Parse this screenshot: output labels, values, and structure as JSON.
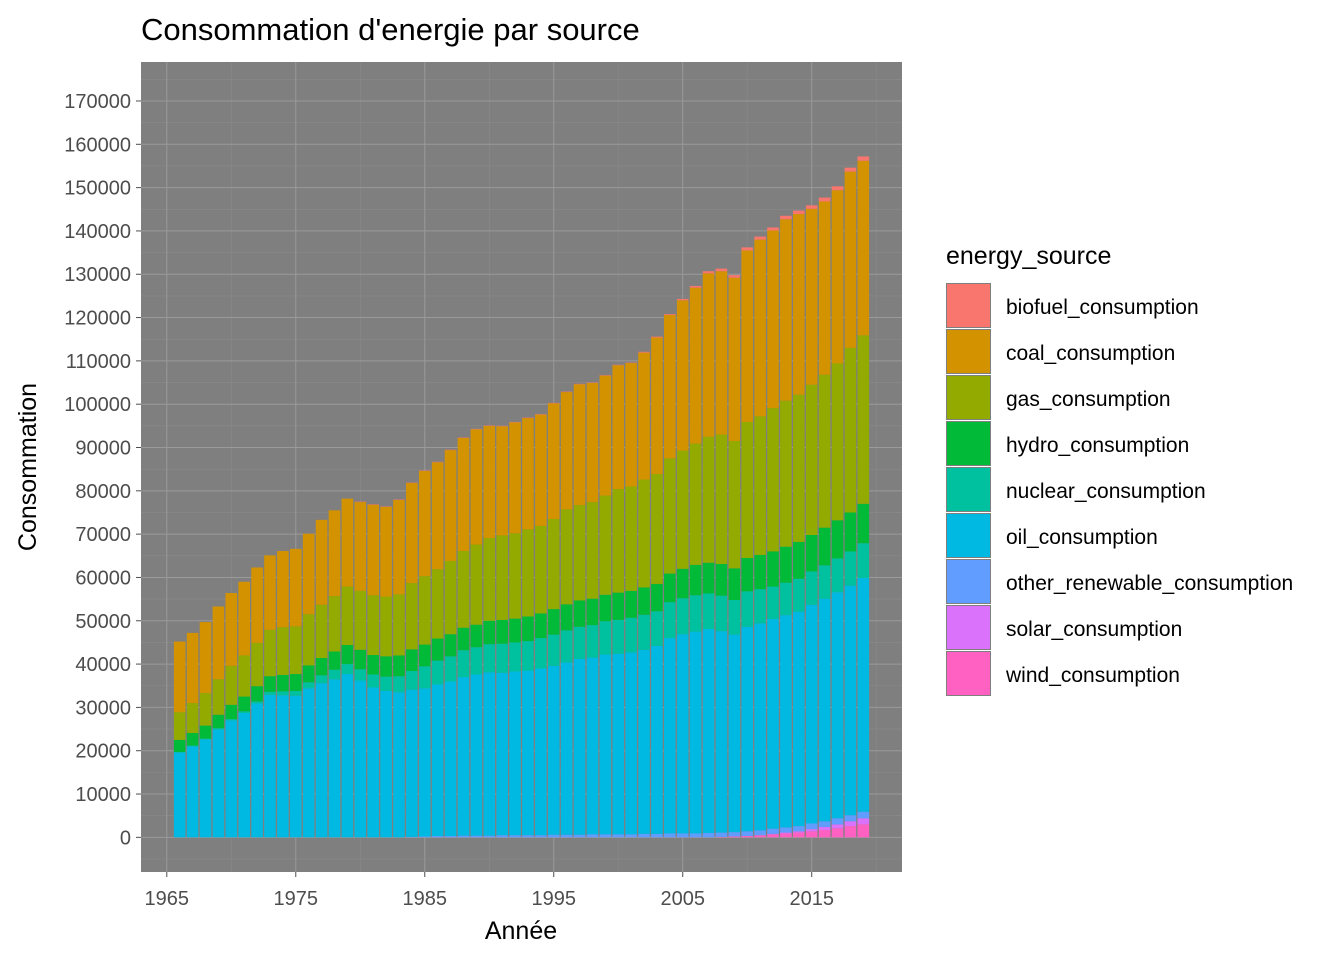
{
  "chart_data": {
    "type": "bar",
    "stacked": true,
    "title": "Consommation d'energie par source",
    "xlabel": "Année",
    "ylabel": "Consommation",
    "xlim": [
      1963,
      2022
    ],
    "ylim": [
      -8000,
      179000
    ],
    "x_ticks": [
      "1965",
      "1975",
      "1985",
      "1995",
      "2005",
      "2015"
    ],
    "y_ticks": [
      "0",
      "10000",
      "20000",
      "30000",
      "40000",
      "50000",
      "60000",
      "70000",
      "80000",
      "90000",
      "100000",
      "110000",
      "120000",
      "130000",
      "140000",
      "150000",
      "160000",
      "170000"
    ],
    "grid": true,
    "panel_background": "#7f7f7f",
    "legend": {
      "title": "energy_source",
      "position": "right"
    },
    "x": [
      1966,
      1967,
      1968,
      1969,
      1970,
      1971,
      1972,
      1973,
      1974,
      1975,
      1976,
      1977,
      1978,
      1979,
      1980,
      1981,
      1982,
      1983,
      1984,
      1985,
      1986,
      1987,
      1988,
      1989,
      1990,
      1991,
      1992,
      1993,
      1994,
      1995,
      1996,
      1997,
      1998,
      1999,
      2000,
      2001,
      2002,
      2003,
      2004,
      2005,
      2006,
      2007,
      2008,
      2009,
      2010,
      2011,
      2012,
      2013,
      2014,
      2015,
      2016,
      2017,
      2018,
      2019
    ],
    "series": [
      {
        "name": "wind_consumption",
        "color": "#FF61C3",
        "values": [
          0,
          0,
          0,
          0,
          0,
          0,
          0,
          0,
          0,
          0,
          0,
          0,
          0,
          0,
          0,
          0,
          0,
          0,
          0,
          0,
          0,
          0,
          0,
          0,
          0,
          0,
          0,
          0,
          0,
          0,
          0,
          0,
          0,
          0,
          0,
          0,
          0,
          0,
          0,
          0,
          0,
          0,
          100,
          200,
          300,
          500,
          700,
          900,
          1100,
          1400,
          1700,
          2100,
          2600,
          3000
        ]
      },
      {
        "name": "solar_consumption",
        "color": "#DB72FB",
        "values": [
          0,
          0,
          0,
          0,
          0,
          0,
          0,
          0,
          0,
          0,
          0,
          0,
          0,
          0,
          0,
          0,
          0,
          0,
          0,
          0,
          0,
          0,
          0,
          0,
          0,
          0,
          0,
          0,
          0,
          0,
          0,
          0,
          0,
          0,
          0,
          0,
          0,
          0,
          0,
          0,
          0,
          0,
          0,
          0,
          0,
          0,
          100,
          200,
          300,
          500,
          700,
          900,
          1100,
          1400
        ]
      },
      {
        "name": "other_renewable_consumption",
        "color": "#619CFF",
        "values": [
          0,
          0,
          0,
          0,
          0,
          0,
          0,
          0,
          0,
          0,
          0,
          0,
          0,
          0,
          0,
          0,
          0,
          0,
          100,
          200,
          300,
          300,
          400,
          400,
          400,
          500,
          500,
          500,
          500,
          600,
          600,
          600,
          700,
          700,
          700,
          700,
          800,
          800,
          900,
          900,
          900,
          1000,
          1000,
          1000,
          1100,
          1100,
          1200,
          1200,
          1200,
          1300,
          1300,
          1400,
          1400,
          1500
        ]
      },
      {
        "name": "oil_consumption",
        "color": "#00B9E3",
        "values": [
          19600,
          21000,
          22600,
          24900,
          27000,
          28700,
          30900,
          32900,
          32800,
          32700,
          34400,
          35600,
          36500,
          37700,
          36200,
          34600,
          33800,
          33500,
          34000,
          34200,
          35000,
          35700,
          36600,
          37200,
          37700,
          37500,
          37800,
          38000,
          38500,
          39000,
          39800,
          40600,
          40800,
          41500,
          41700,
          42000,
          42500,
          43400,
          45100,
          46000,
          46600,
          47100,
          46500,
          45600,
          47200,
          47800,
          48400,
          49000,
          49500,
          50500,
          51400,
          52200,
          53000,
          54000
        ]
      },
      {
        "name": "nuclear_consumption",
        "color": "#00C19F",
        "values": [
          100,
          200,
          200,
          300,
          300,
          400,
          500,
          700,
          900,
          1100,
          1400,
          1800,
          2200,
          2300,
          2600,
          3000,
          3300,
          3700,
          4300,
          5100,
          5500,
          5800,
          6200,
          6300,
          6500,
          6700,
          6700,
          6800,
          7000,
          7200,
          7400,
          7400,
          7500,
          7700,
          7800,
          8000,
          8100,
          8000,
          8300,
          8300,
          8400,
          8200,
          8200,
          8000,
          8200,
          7900,
          7500,
          7500,
          7600,
          7700,
          7700,
          7800,
          7900,
          8000
        ]
      },
      {
        "name": "hydro_consumption",
        "color": "#00BA38",
        "values": [
          2800,
          2900,
          3000,
          3100,
          3300,
          3400,
          3500,
          3600,
          3800,
          3900,
          3900,
          4000,
          4200,
          4400,
          4500,
          4500,
          4700,
          4800,
          5000,
          5000,
          5100,
          5100,
          5200,
          5200,
          5400,
          5500,
          5500,
          5700,
          5700,
          5900,
          6000,
          6100,
          6100,
          6100,
          6300,
          6200,
          6300,
          6300,
          6600,
          6800,
          7000,
          7100,
          7300,
          7300,
          7700,
          7900,
          8100,
          8300,
          8500,
          8400,
          8700,
          8800,
          9000,
          9100
        ]
      },
      {
        "name": "gas_consumption",
        "color": "#93AA00",
        "values": [
          6400,
          6900,
          7500,
          8200,
          9000,
          9500,
          10000,
          10700,
          11000,
          11000,
          11800,
          12300,
          12800,
          13500,
          13600,
          13800,
          13800,
          14100,
          15300,
          15800,
          16000,
          16900,
          17700,
          18500,
          19100,
          19500,
          19700,
          20100,
          20200,
          20800,
          21900,
          22000,
          22300,
          22900,
          23900,
          24100,
          24900,
          25400,
          26600,
          27300,
          28000,
          29100,
          29900,
          29400,
          31400,
          32000,
          33100,
          33700,
          34000,
          34700,
          35300,
          36200,
          38000,
          38900
        ]
      },
      {
        "name": "coal_consumption",
        "color": "#D39200",
        "values": [
          16300,
          16200,
          16400,
          16800,
          16800,
          17000,
          17400,
          17200,
          17600,
          17900,
          18600,
          19600,
          19800,
          20300,
          20500,
          20900,
          20700,
          21800,
          23100,
          24300,
          24700,
          25600,
          26100,
          26600,
          25900,
          25200,
          25600,
          25700,
          25700,
          26700,
          27100,
          27900,
          27500,
          27700,
          28600,
          28500,
          29300,
          31500,
          33100,
          34700,
          36000,
          37700,
          37700,
          37700,
          39600,
          40800,
          41000,
          41900,
          41700,
          40600,
          40000,
          40000,
          40700,
          40300
        ]
      },
      {
        "name": "biofuel_consumption",
        "color": "#F8766D",
        "values": [
          0,
          0,
          0,
          0,
          0,
          0,
          0,
          0,
          0,
          0,
          0,
          0,
          0,
          0,
          100,
          100,
          100,
          100,
          100,
          100,
          100,
          100,
          100,
          100,
          100,
          100,
          100,
          100,
          100,
          100,
          100,
          100,
          100,
          100,
          100,
          100,
          200,
          200,
          200,
          300,
          400,
          500,
          600,
          600,
          700,
          700,
          700,
          800,
          800,
          800,
          900,
          900,
          900,
          1000
        ]
      }
    ]
  }
}
